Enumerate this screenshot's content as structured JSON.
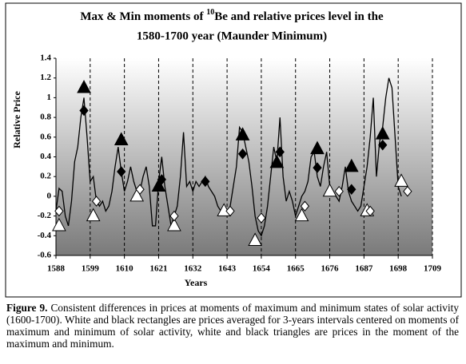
{
  "chart_data": {
    "type": "line",
    "title": {
      "before": "Max & Min moments of ",
      "sup": "10",
      "after": "Be and relative prices level in the",
      "line2": "1580-1700 year (Maunder Minimum)"
    },
    "ylabel": "Relative Price",
    "xlabel": "Years",
    "xlim": [
      1588,
      1709
    ],
    "xticks": [
      1588,
      1599,
      1610,
      1621,
      1632,
      1643,
      1654,
      1665,
      1676,
      1687,
      1698,
      1709
    ],
    "ylim": [
      -0.6,
      1.4
    ],
    "yticks": [
      -0.6,
      -0.4,
      -0.2,
      0,
      0.2,
      0.4,
      0.6,
      0.8,
      1,
      1.2,
      1.4
    ],
    "grid": true,
    "series": [
      {
        "kind": "line",
        "color": "#000000",
        "x": [
          1588,
          1589,
          1590,
          1591,
          1592,
          1593,
          1594,
          1595,
          1596,
          1597,
          1598,
          1599,
          1600,
          1601,
          1602,
          1603,
          1604,
          1605,
          1606,
          1607,
          1608,
          1609,
          1610,
          1611,
          1612,
          1613,
          1614,
          1615,
          1616,
          1617,
          1618,
          1619,
          1620,
          1621,
          1622,
          1623,
          1624,
          1625,
          1626,
          1627,
          1628,
          1629,
          1630,
          1631,
          1632,
          1633,
          1634,
          1635,
          1636,
          1637,
          1638,
          1639,
          1640,
          1641,
          1642,
          1643,
          1644,
          1645,
          1646,
          1647,
          1648,
          1649,
          1650,
          1651,
          1652,
          1653,
          1654,
          1655,
          1656,
          1657,
          1658,
          1659,
          1660,
          1661,
          1662,
          1663,
          1664,
          1665,
          1666,
          1667,
          1668,
          1669,
          1670,
          1671,
          1672,
          1673,
          1674,
          1675,
          1676,
          1677,
          1678,
          1679,
          1680,
          1681,
          1682,
          1683,
          1684,
          1685,
          1686,
          1687,
          1688,
          1689,
          1690,
          1691,
          1692,
          1693,
          1694,
          1695,
          1696,
          1697,
          1698,
          1699
        ],
        "values": [
          -0.15,
          0.08,
          0.05,
          -0.2,
          -0.3,
          -0.05,
          0.35,
          0.5,
          0.8,
          1.0,
          0.6,
          0.15,
          0.2,
          -0.05,
          -0.1,
          -0.05,
          -0.15,
          -0.1,
          0.05,
          0.3,
          0.5,
          0.25,
          0.05,
          0.15,
          0.3,
          0.15,
          0.05,
          0.05,
          0.2,
          0.3,
          0.1,
          -0.3,
          -0.3,
          0.15,
          0.4,
          0.1,
          -0.1,
          -0.3,
          -0.2,
          -0.1,
          0.2,
          0.65,
          0.1,
          0.15,
          0.05,
          0.15,
          0.1,
          0.15,
          0.2,
          0.1,
          0.05,
          0.0,
          -0.1,
          -0.15,
          -0.1,
          -0.15,
          -0.1,
          0.1,
          0.3,
          0.7,
          0.65,
          0.5,
          0.35,
          0.1,
          -0.2,
          -0.35,
          -0.4,
          -0.3,
          -0.1,
          0.2,
          0.5,
          0.35,
          0.8,
          0.2,
          -0.05,
          0.05,
          -0.05,
          -0.2,
          -0.1,
          0.0,
          0.05,
          0.15,
          0.4,
          0.45,
          0.2,
          0.1,
          0.3,
          0.45,
          0.1,
          0.05,
          0.0,
          -0.05,
          0.1,
          0.3,
          0.05,
          -0.05,
          -0.1,
          -0.15,
          -0.1,
          0.1,
          0.3,
          0.6,
          1.0,
          0.2,
          0.55,
          0.7,
          1.0,
          1.2,
          1.1,
          0.6,
          0.1,
          0.0
        ]
      },
      {
        "kind": "marker",
        "marker": "triangle",
        "color": "#000000",
        "x": [
          1597,
          1609,
          1621,
          1648,
          1659,
          1672,
          1683,
          1693
        ],
        "values": [
          1.1,
          0.57,
          0.1,
          0.62,
          0.34,
          0.48,
          0.3,
          0.63
        ]
      },
      {
        "kind": "marker",
        "marker": "diamond",
        "color": "#000000",
        "x": [
          1597,
          1609,
          1622,
          1636,
          1648,
          1660,
          1672,
          1683,
          1693
        ],
        "values": [
          0.87,
          0.25,
          0.17,
          0.15,
          0.43,
          0.45,
          0.29,
          0.07,
          0.52
        ]
      },
      {
        "kind": "marker",
        "marker": "triangle",
        "color": "#ffffff",
        "x": [
          1589,
          1600,
          1614,
          1626,
          1642,
          1652,
          1667,
          1676,
          1688,
          1699
        ],
        "values": [
          -0.3,
          -0.2,
          0.0,
          -0.3,
          -0.15,
          -0.45,
          -0.2,
          0.05,
          -0.15,
          0.15
        ]
      },
      {
        "kind": "marker",
        "marker": "diamond",
        "color": "#ffffff",
        "x": [
          1589,
          1601,
          1615,
          1626,
          1644,
          1654,
          1668,
          1679,
          1689,
          1701
        ],
        "values": [
          -0.15,
          -0.05,
          0.07,
          -0.2,
          -0.15,
          -0.22,
          -0.1,
          0.05,
          -0.15,
          0.05
        ]
      }
    ]
  },
  "caption": {
    "label": "Figure 9.",
    "text": " Consistent differences in prices at moments of maximum and minimum states of solar activity (1600-1700). White and black rectangles are prices averaged for 3-years intervals centered on moments of maximum and minimum of solar activity, white and black triangles are prices in the moment of the maximum and minimum."
  }
}
